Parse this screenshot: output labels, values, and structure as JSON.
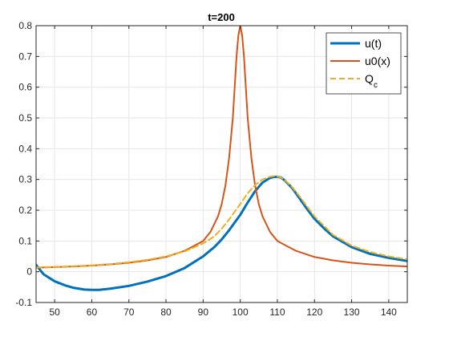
{
  "chart_data": {
    "type": "line",
    "title": "t=200",
    "xlabel": "",
    "ylabel": "",
    "xlim": [
      45,
      145
    ],
    "ylim": [
      -0.1,
      0.8
    ],
    "xticks": [
      50,
      60,
      70,
      80,
      90,
      100,
      110,
      120,
      130,
      140
    ],
    "yticks": [
      -0.1,
      0,
      0.1,
      0.2,
      0.3,
      0.4,
      0.5,
      0.6,
      0.7,
      0.8
    ],
    "grid": true,
    "legend_position": "top-right",
    "series": [
      {
        "name": "u(t)",
        "color": "#0072BD",
        "style": "solid",
        "x": [
          45,
          47,
          50,
          53,
          55,
          58,
          60,
          62,
          65,
          70,
          75,
          80,
          85,
          90,
          93,
          95,
          97,
          100,
          102,
          104,
          106,
          108,
          109,
          110,
          111,
          112,
          114,
          116,
          118,
          120,
          123,
          125,
          130,
          135,
          140,
          145
        ],
        "y": [
          0.022,
          -0.008,
          -0.031,
          -0.045,
          -0.052,
          -0.058,
          -0.059,
          -0.059,
          -0.055,
          -0.046,
          -0.032,
          -0.014,
          0.012,
          0.05,
          0.08,
          0.105,
          0.135,
          0.185,
          0.225,
          0.262,
          0.29,
          0.305,
          0.308,
          0.309,
          0.306,
          0.297,
          0.272,
          0.238,
          0.204,
          0.172,
          0.136,
          0.115,
          0.08,
          0.058,
          0.045,
          0.035
        ]
      },
      {
        "name": "u0(x)",
        "color": "#D95319",
        "style": "solid",
        "x": [
          45,
          50,
          55,
          60,
          65,
          70,
          75,
          80,
          85,
          90,
          92,
          94,
          95,
          96,
          97,
          98,
          98.5,
          99,
          99.5,
          100,
          100.5,
          101,
          101.5,
          102,
          103,
          104,
          105,
          106,
          108,
          110,
          115,
          120,
          125,
          130,
          135,
          140,
          145
        ],
        "y": [
          0.013,
          0.015,
          0.017,
          0.02,
          0.024,
          0.029,
          0.037,
          0.048,
          0.068,
          0.1,
          0.13,
          0.18,
          0.22,
          0.28,
          0.37,
          0.5,
          0.6,
          0.7,
          0.77,
          0.8,
          0.77,
          0.7,
          0.6,
          0.5,
          0.37,
          0.28,
          0.22,
          0.18,
          0.13,
          0.1,
          0.068,
          0.048,
          0.037,
          0.029,
          0.024,
          0.02,
          0.017
        ]
      },
      {
        "name": "Q_c",
        "color": "#EDB120",
        "style": "dashed",
        "x": [
          45,
          50,
          55,
          60,
          65,
          70,
          75,
          80,
          85,
          90,
          93,
          95,
          97,
          100,
          102,
          104,
          106,
          108,
          109,
          110,
          111,
          112,
          114,
          116,
          118,
          120,
          125,
          130,
          135,
          140,
          145
        ],
        "y": [
          0.014,
          0.016,
          0.018,
          0.021,
          0.025,
          0.031,
          0.039,
          0.05,
          0.066,
          0.092,
          0.115,
          0.14,
          0.17,
          0.22,
          0.255,
          0.282,
          0.3,
          0.309,
          0.311,
          0.31,
          0.306,
          0.298,
          0.275,
          0.245,
          0.212,
          0.18,
          0.12,
          0.085,
          0.064,
          0.05,
          0.04
        ]
      }
    ]
  }
}
